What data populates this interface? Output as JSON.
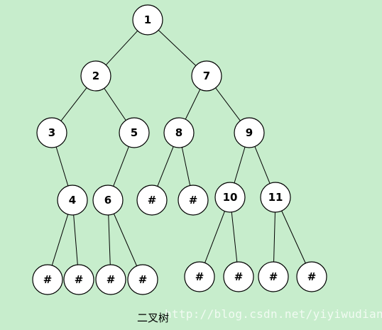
{
  "diagram": {
    "caption": "二叉树",
    "watermark": "http://blog.csdn.net/yiyiwudian",
    "nodes": [
      {
        "id": "n1",
        "label": "1"
      },
      {
        "id": "n2",
        "label": "2"
      },
      {
        "id": "n7",
        "label": "7"
      },
      {
        "id": "n3",
        "label": "3"
      },
      {
        "id": "n5",
        "label": "5"
      },
      {
        "id": "n8",
        "label": "8"
      },
      {
        "id": "n9",
        "label": "9"
      },
      {
        "id": "n4",
        "label": "4"
      },
      {
        "id": "n6",
        "label": "6"
      },
      {
        "id": "h1",
        "label": "#"
      },
      {
        "id": "h2",
        "label": "#"
      },
      {
        "id": "n10",
        "label": "10"
      },
      {
        "id": "n11",
        "label": "11"
      },
      {
        "id": "h3",
        "label": "#"
      },
      {
        "id": "h4",
        "label": "#"
      },
      {
        "id": "h5",
        "label": "#"
      },
      {
        "id": "h6",
        "label": "#"
      },
      {
        "id": "h7",
        "label": "#"
      },
      {
        "id": "h8",
        "label": "#"
      },
      {
        "id": "h9",
        "label": "#"
      },
      {
        "id": "h10",
        "label": "#"
      }
    ],
    "edges": [
      [
        "n1",
        "n2"
      ],
      [
        "n1",
        "n7"
      ],
      [
        "n2",
        "n3"
      ],
      [
        "n2",
        "n5"
      ],
      [
        "n7",
        "n8"
      ],
      [
        "n7",
        "n9"
      ],
      [
        "n3",
        "n4"
      ],
      [
        "n5",
        "n6"
      ],
      [
        "n8",
        "h1"
      ],
      [
        "n8",
        "h2"
      ],
      [
        "n9",
        "n10"
      ],
      [
        "n9",
        "n11"
      ],
      [
        "n4",
        "h3"
      ],
      [
        "n4",
        "h4"
      ],
      [
        "n6",
        "h5"
      ],
      [
        "n6",
        "h6"
      ],
      [
        "n10",
        "h7"
      ],
      [
        "n10",
        "h8"
      ],
      [
        "n11",
        "h9"
      ],
      [
        "n11",
        "h10"
      ]
    ]
  }
}
